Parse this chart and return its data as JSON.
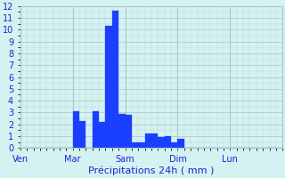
{
  "title": "",
  "xlabel": "Précipitations 24h ( mm )",
  "ylabel": "",
  "background_color": "#d4f2f2",
  "bar_color": "#1a3fff",
  "grid_color": "#b0c4c4",
  "axis_label_color": "#2222cc",
  "ylim": [
    0,
    12
  ],
  "yticks": [
    0,
    1,
    2,
    3,
    4,
    5,
    6,
    7,
    8,
    9,
    10,
    11,
    12
  ],
  "day_labels": [
    "Ven",
    "Mar",
    "Sam",
    "Dim",
    "Lun"
  ],
  "day_positions": [
    0,
    8,
    16,
    24,
    32
  ],
  "xlim": [
    0,
    40
  ],
  "values": [
    0,
    0,
    0,
    0,
    0,
    0,
    0,
    0,
    3.1,
    2.3,
    0,
    3.1,
    2.2,
    10.3,
    11.6,
    2.9,
    2.8,
    0.5,
    0.5,
    1.2,
    1.2,
    0.9,
    1.0,
    0.5,
    0.8,
    0,
    0,
    0,
    0,
    0,
    0,
    0,
    0,
    0,
    0,
    0,
    0,
    0,
    0,
    0
  ],
  "num_bars": 40,
  "xlabel_fontsize": 8,
  "tick_fontsize": 7,
  "minor_grid_divisions": 8
}
